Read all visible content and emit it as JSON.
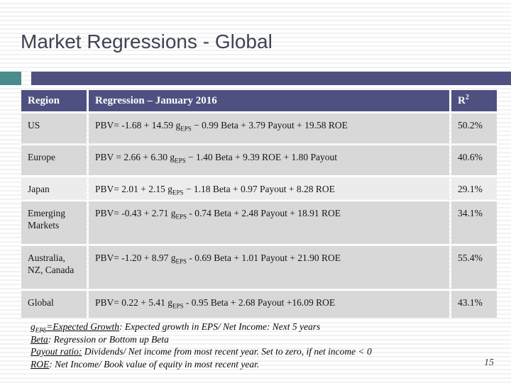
{
  "title": "Market Regressions - Global",
  "page_number": "15",
  "colors": {
    "accent_teal": "#4A8B8C",
    "accent_purple": "#4E5180",
    "header_bg": "#4E5180",
    "header_text": "#FFFFFF",
    "row_bg": "#D8D8D8",
    "row_bg_light": "#ECECEC",
    "title_text": "#3F4352"
  },
  "table": {
    "headers": {
      "region": "Region",
      "regression": "Regression – January 2016",
      "r2_base": "R",
      "r2_sup": "2"
    },
    "rows": [
      {
        "region": "US",
        "eq": {
          "pre": "PBV= -1.68 + 14.59 g",
          "sub": "EPS",
          "post": " − 0.99 Beta + 3.79 Payout + 19.58 ROE"
        },
        "r2": "50.2%"
      },
      {
        "region": "Europe",
        "eq": {
          "pre": "PBV = 2.66 + 6.30 g",
          "sub": "EPS",
          "post": " − 1.40 Beta + 9.39 ROE + 1.80 Payout"
        },
        "r2": "40.6%"
      },
      {
        "region": "Japan",
        "eq": {
          "pre": "PBV= 2.01 + 2.15 g",
          "sub": "EPS",
          "post": " − 1.18 Beta + 0.97 Payout + 8.28 ROE"
        },
        "r2": "29.1%"
      },
      {
        "region": "Emerging Markets",
        "eq": {
          "pre": "PBV= -0.43 + 2.71 g",
          "sub": "EPS",
          "post": " - 0.74 Beta + 2.48 Payout + 18.91 ROE"
        },
        "r2": "34.1%"
      },
      {
        "region": "Australia, NZ, Canada",
        "eq": {
          "pre": "PBV= -1.20 + 8.97 g",
          "sub": "EPS",
          "post": " - 0.69 Beta + 1.01 Payout + 21.90 ROE"
        },
        "r2": "55.4%"
      },
      {
        "region": "Global",
        "eq": {
          "pre": "PBV= 0.22 + 5.41 g",
          "sub": "EPS",
          "post": " - 0.95 Beta + 2.68 Payout +16.09 ROE"
        },
        "r2": "43.1%"
      }
    ]
  },
  "footnotes": [
    {
      "u_pre": "g",
      "u_sub": "EPS",
      "u_post": "=Expected Growth",
      "rest": ": Expected growth in EPS/ Net Income: Next 5 years"
    },
    {
      "u_pre": "Beta",
      "u_sub": "",
      "u_post": "",
      "rest": ": Regression or Bottom up Beta"
    },
    {
      "u_pre": "Payout ratio:",
      "u_sub": "",
      "u_post": "",
      "rest": " Dividends/ Net income from most recent year. Set to zero, if net income < 0"
    },
    {
      "u_pre": "ROE",
      "u_sub": "",
      "u_post": "",
      "rest": ": Net Income/ Book value of equity in most recent year."
    }
  ]
}
